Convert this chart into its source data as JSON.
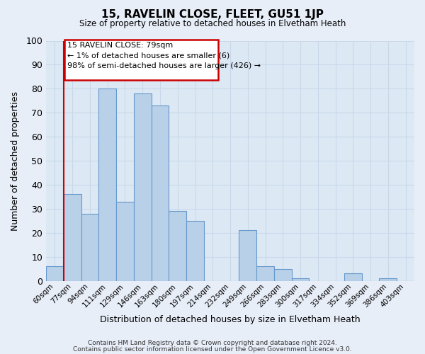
{
  "title": "15, RAVELIN CLOSE, FLEET, GU51 1JP",
  "subtitle": "Size of property relative to detached houses in Elvetham Heath",
  "xlabel": "Distribution of detached houses by size in Elvetham Heath",
  "ylabel": "Number of detached properties",
  "bar_labels": [
    "60sqm",
    "77sqm",
    "94sqm",
    "111sqm",
    "129sqm",
    "146sqm",
    "163sqm",
    "180sqm",
    "197sqm",
    "214sqm",
    "232sqm",
    "249sqm",
    "266sqm",
    "283sqm",
    "300sqm",
    "317sqm",
    "334sqm",
    "352sqm",
    "369sqm",
    "386sqm",
    "403sqm"
  ],
  "bar_values": [
    6,
    36,
    28,
    80,
    33,
    78,
    73,
    29,
    25,
    0,
    0,
    21,
    6,
    5,
    1,
    0,
    0,
    3,
    0,
    1,
    0
  ],
  "bar_color": "#b8d0e8",
  "bar_edge_color": "#6699cc",
  "ylim": [
    0,
    100
  ],
  "yticks": [
    0,
    10,
    20,
    30,
    40,
    50,
    60,
    70,
    80,
    90,
    100
  ],
  "vline_color": "#cc0000",
  "annotation_text_line1": "15 RAVELIN CLOSE: 79sqm",
  "annotation_text_line2": "← 1% of detached houses are smaller (6)",
  "annotation_text_line3": "98% of semi-detached houses are larger (426) →",
  "annotation_box_color": "#cc0000",
  "fig_bg_color": "#e8eef8",
  "plot_bg_color": "#dde8f5",
  "grid_color": "#c8d8e8",
  "footer_line1": "Contains HM Land Registry data © Crown copyright and database right 2024.",
  "footer_line2": "Contains public sector information licensed under the Open Government Licence v3.0."
}
